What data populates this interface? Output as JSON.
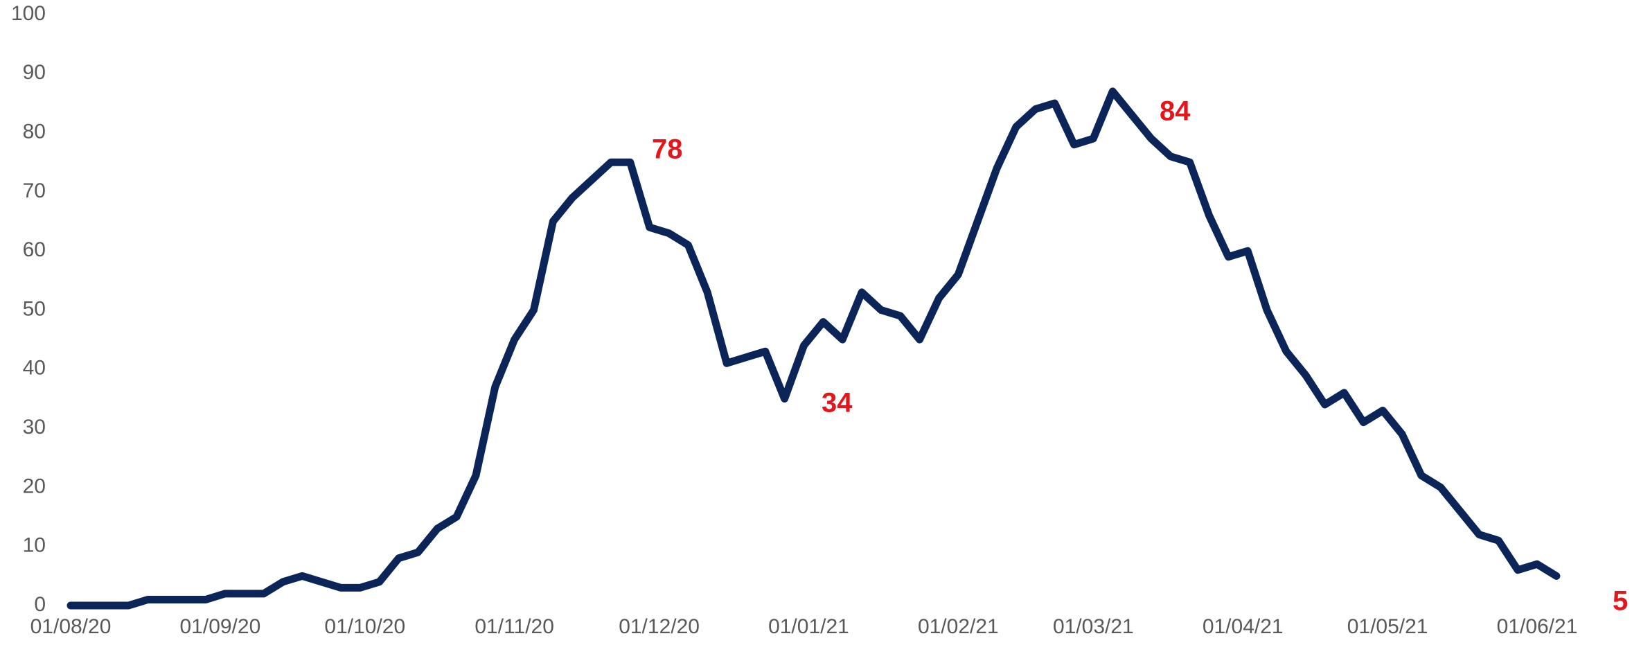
{
  "chart_data": {
    "type": "line",
    "x": [
      "2020-08-01",
      "2020-08-05",
      "2020-08-09",
      "2020-08-13",
      "2020-08-17",
      "2020-08-21",
      "2020-08-25",
      "2020-08-29",
      "2020-09-02",
      "2020-09-06",
      "2020-09-10",
      "2020-09-14",
      "2020-09-18",
      "2020-09-22",
      "2020-09-26",
      "2020-09-30",
      "2020-10-04",
      "2020-10-08",
      "2020-10-12",
      "2020-10-16",
      "2020-10-20",
      "2020-10-24",
      "2020-10-28",
      "2020-11-01",
      "2020-11-05",
      "2020-11-09",
      "2020-11-13",
      "2020-11-17",
      "2020-11-21",
      "2020-11-25",
      "2020-11-29",
      "2020-12-03",
      "2020-12-07",
      "2020-12-11",
      "2020-12-15",
      "2020-12-19",
      "2020-12-23",
      "2020-12-27",
      "2020-12-31",
      "2021-01-04",
      "2021-01-08",
      "2021-01-12",
      "2021-01-16",
      "2021-01-20",
      "2021-01-24",
      "2021-01-28",
      "2021-02-01",
      "2021-02-05",
      "2021-02-09",
      "2021-02-13",
      "2021-02-17",
      "2021-02-21",
      "2021-02-25",
      "2021-03-01",
      "2021-03-05",
      "2021-03-09",
      "2021-03-13",
      "2021-03-17",
      "2021-03-21",
      "2021-03-25",
      "2021-03-29",
      "2021-04-02",
      "2021-04-06",
      "2021-04-10",
      "2021-04-14",
      "2021-04-18",
      "2021-04-22",
      "2021-04-26",
      "2021-04-30",
      "2021-05-04",
      "2021-05-08",
      "2021-05-12",
      "2021-05-16",
      "2021-05-20",
      "2021-05-24",
      "2021-05-28",
      "2021-06-01",
      "2021-06-05"
    ],
    "series": [
      {
        "color": "#0b2559",
        "values": [
          0,
          0,
          0,
          0,
          1,
          1,
          1,
          1,
          2,
          2,
          2,
          4,
          5,
          4,
          3,
          3,
          4,
          8,
          9,
          13,
          15,
          22,
          37,
          45,
          50,
          65,
          69,
          72,
          75,
          75,
          64,
          63,
          61,
          53,
          41,
          42,
          43,
          35,
          44,
          48,
          45,
          53,
          50,
          49,
          45,
          52,
          56,
          65,
          74,
          81,
          84,
          85,
          78,
          79,
          87,
          83,
          79,
          76,
          75,
          66,
          59,
          60,
          50,
          43,
          39,
          34,
          36,
          31,
          33,
          29,
          22,
          20,
          16,
          12,
          11,
          6,
          7,
          5
        ]
      }
    ],
    "annotations": [
      "78",
      "34",
      "84",
      "5"
    ],
    "xlim": [
      "2020-08-01",
      "2021-06-01"
    ],
    "xticks": [
      {
        "value": "2020-08-01",
        "label": "01/08/20"
      },
      {
        "value": "2020-09-01",
        "label": "01/09/20"
      },
      {
        "value": "2020-10-01",
        "label": "01/10/20"
      },
      {
        "value": "2020-11-01",
        "label": "01/11/20"
      },
      {
        "value": "2020-12-01",
        "label": "01/12/20"
      },
      {
        "value": "2021-01-01",
        "label": "01/01/21"
      },
      {
        "value": "2021-02-01",
        "label": "01/02/21"
      },
      {
        "value": "2021-03-01",
        "label": "01/03/21"
      },
      {
        "value": "2021-04-01",
        "label": "01/04/21"
      },
      {
        "value": "2021-05-01",
        "label": "01/05/21"
      },
      {
        "value": "2021-06-01",
        "label": "01/06/21"
      }
    ],
    "ylim": [
      0,
      100
    ],
    "yticks": [
      0,
      10,
      20,
      30,
      40,
      50,
      60,
      70,
      80,
      90,
      100
    ],
    "annotation_color": "#e3161c"
  }
}
